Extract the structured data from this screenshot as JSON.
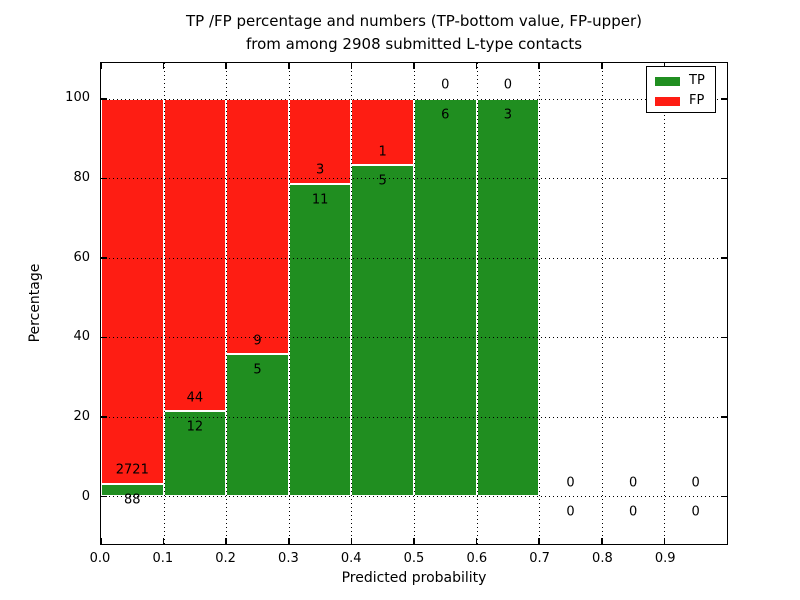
{
  "figure": {
    "background": "#ffffff"
  },
  "chart_data": {
    "type": "bar",
    "stacked": true,
    "normalized_to_percent": true,
    "title_lines": [
      "TP /FP percentage and numbers (TP-bottom value, FP-upper)",
      "from among 2908 submitted L-type contacts"
    ],
    "xlabel": "Predicted probability",
    "ylabel": "Percentage",
    "x_tick_values": [
      0.0,
      0.1,
      0.2,
      0.3,
      0.4,
      0.5,
      0.6,
      0.7,
      0.8,
      0.9
    ],
    "x_tick_labels": [
      "0.0",
      "0.1",
      "0.2",
      "0.3",
      "0.4",
      "0.5",
      "0.6",
      "0.7",
      "0.8",
      "0.9"
    ],
    "y_tick_values": [
      0,
      20,
      40,
      60,
      80,
      100
    ],
    "y_tick_labels": [
      "0",
      "20",
      "40",
      "60",
      "80",
      "100"
    ],
    "xlim": [
      0.0,
      1.0
    ],
    "ylim": [
      -12,
      109
    ],
    "grid": "dotted",
    "bin_width": 0.1,
    "bins": [
      {
        "x_start": 0.0,
        "x_end": 0.1,
        "tp": 88,
        "fp": 2721
      },
      {
        "x_start": 0.1,
        "x_end": 0.2,
        "tp": 12,
        "fp": 44
      },
      {
        "x_start": 0.2,
        "x_end": 0.3,
        "tp": 5,
        "fp": 9
      },
      {
        "x_start": 0.3,
        "x_end": 0.4,
        "tp": 11,
        "fp": 3
      },
      {
        "x_start": 0.4,
        "x_end": 0.5,
        "tp": 5,
        "fp": 1
      },
      {
        "x_start": 0.5,
        "x_end": 0.6,
        "tp": 6,
        "fp": 0
      },
      {
        "x_start": 0.6,
        "x_end": 0.7,
        "tp": 3,
        "fp": 0
      },
      {
        "x_start": 0.7,
        "x_end": 0.8,
        "tp": 0,
        "fp": 0
      },
      {
        "x_start": 0.8,
        "x_end": 0.9,
        "tp": 0,
        "fp": 0
      },
      {
        "x_start": 0.9,
        "x_end": 1.0,
        "tp": 0,
        "fp": 0
      }
    ],
    "colors": {
      "tp": "#208e20",
      "fp": "#fe1d13",
      "grid": "#000000",
      "bar_edge": "#ffffff",
      "text": "#000000"
    },
    "legend": {
      "position": "upper right",
      "items": [
        {
          "label": "TP",
          "color_key": "tp"
        },
        {
          "label": "FP",
          "color_key": "fp"
        }
      ]
    }
  }
}
